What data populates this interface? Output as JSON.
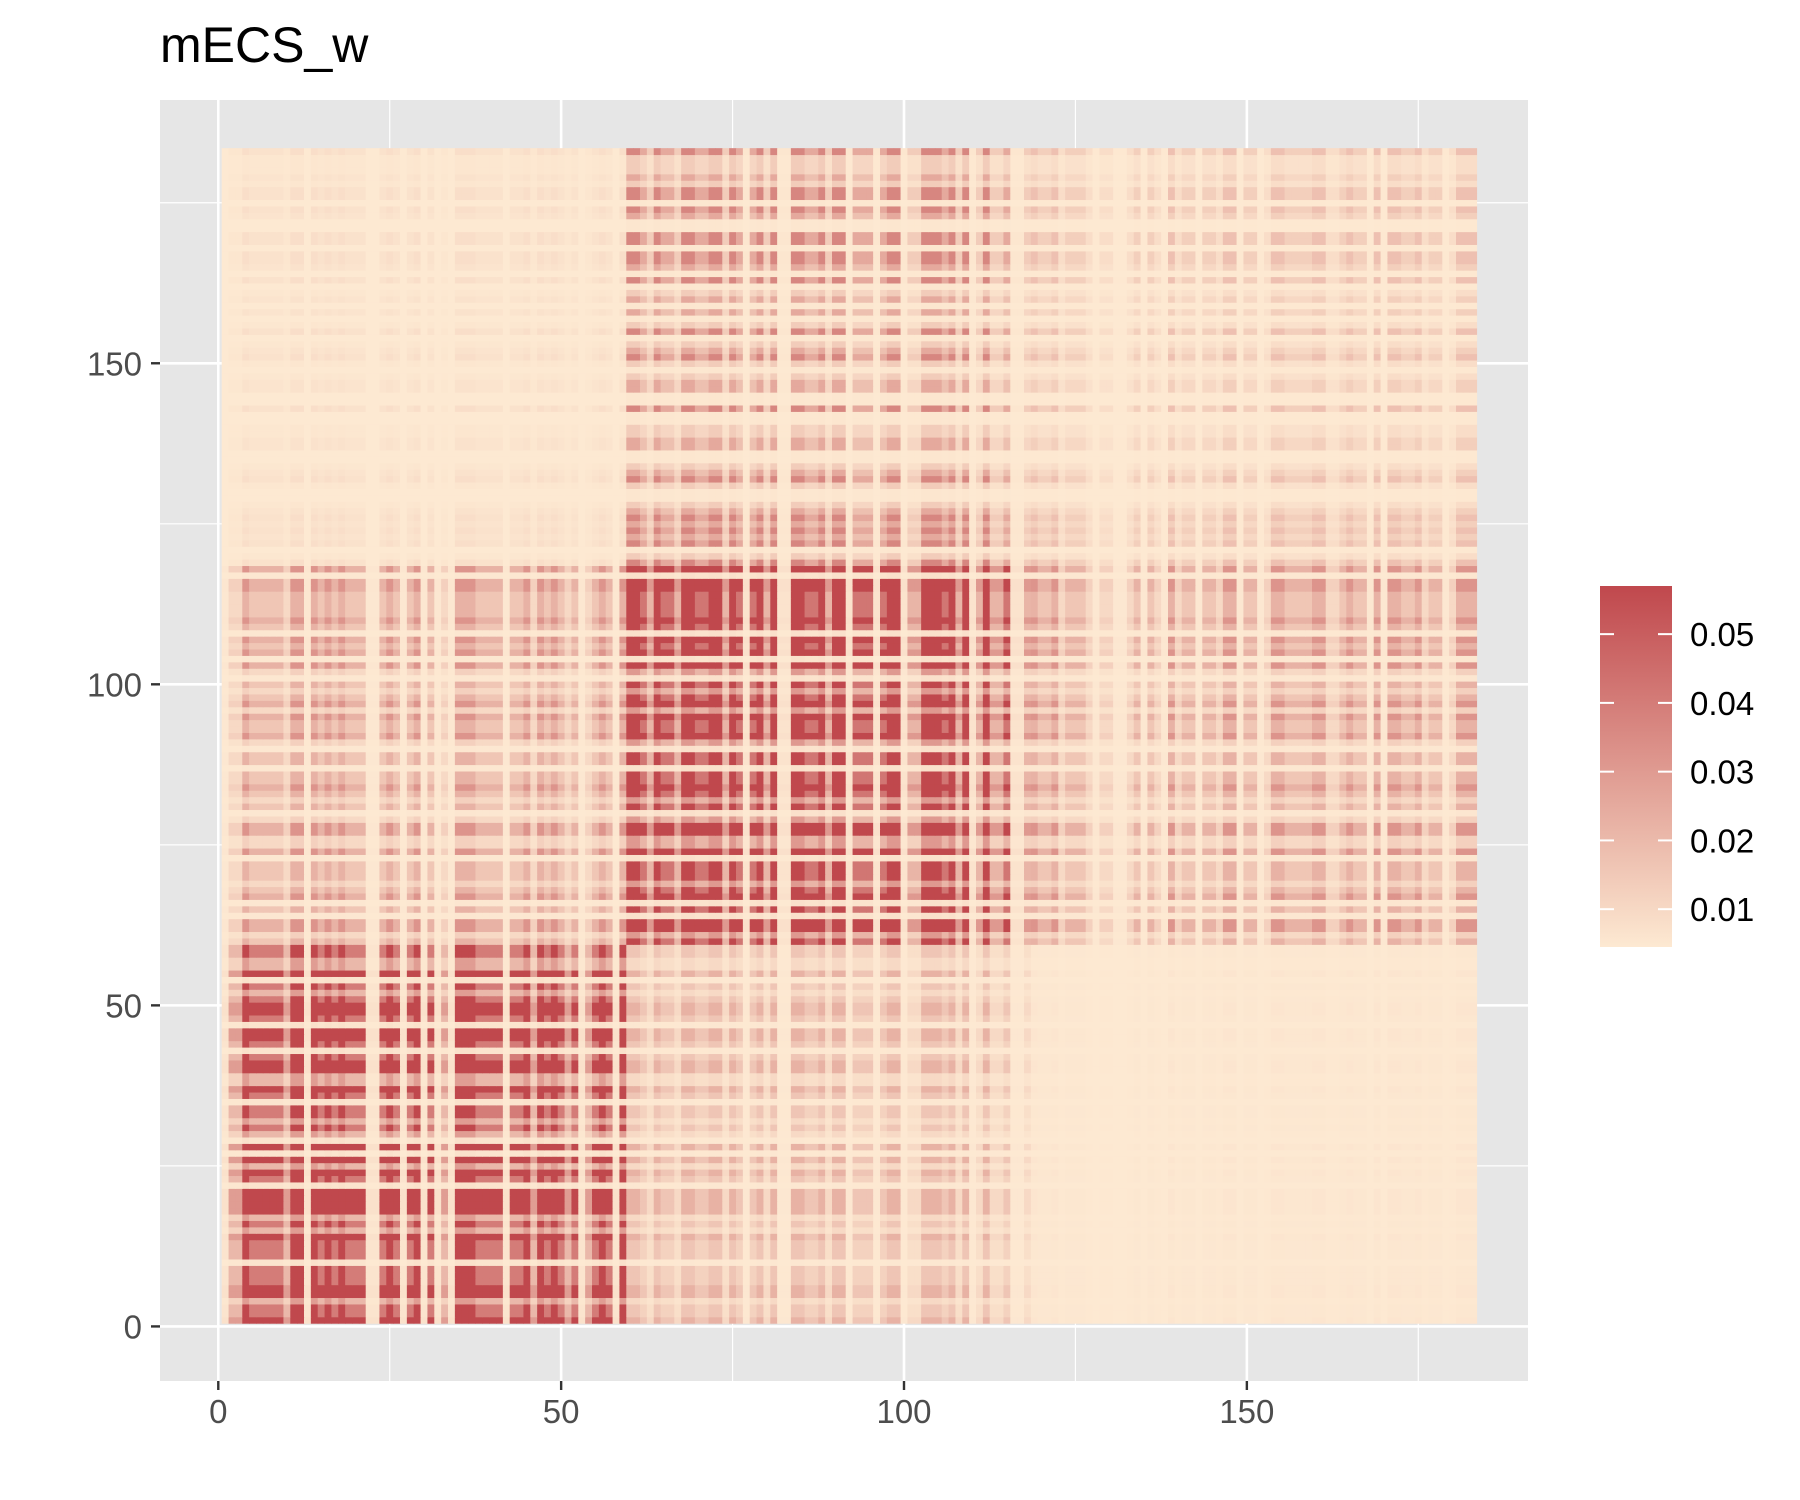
{
  "chart_data": {
    "type": "heatmap",
    "title": "mECS_w",
    "xlabel": "",
    "ylabel": "",
    "n_rows": 183,
    "n_cols": 183,
    "xlim": [
      -8.5,
      191
    ],
    "ylim": [
      -8.5,
      191
    ],
    "x_ticks": [
      0,
      50,
      100,
      150
    ],
    "y_ticks": [
      0,
      50,
      100,
      150
    ],
    "x_tick_labels": [
      "0",
      "50",
      "100",
      "150"
    ],
    "y_tick_labels": [
      "0",
      "50",
      "100",
      "150"
    ],
    "grid": true,
    "legend": {
      "position": "right",
      "min": 0.0045,
      "max": 0.057,
      "ticks": [
        0.01,
        0.02,
        0.03,
        0.04,
        0.05
      ],
      "tick_labels": [
        "0.01",
        "0.02",
        "0.03",
        "0.04",
        "0.05"
      ],
      "low_color": "#fde9d2",
      "high_color": "#c0484d"
    },
    "colors": {
      "panel_background": "#e6e6e6",
      "gridline": "#ffffff",
      "low": "#fde9d2",
      "high": "#c0484d"
    },
    "blocks": [
      {
        "rows": [
          0,
          58
        ],
        "cols": [
          0,
          58
        ],
        "value": 0.04
      },
      {
        "rows": [
          59,
          117
        ],
        "cols": [
          59,
          117
        ],
        "value": 0.042
      },
      {
        "rows": [
          59,
          117
        ],
        "cols": [
          0,
          58
        ],
        "value": 0.016
      },
      {
        "rows": [
          0,
          58
        ],
        "cols": [
          59,
          117
        ],
        "value": 0.012
      },
      {
        "rows": [
          118,
          182
        ],
        "cols": [
          59,
          117
        ],
        "value": 0.018
      },
      {
        "rows": [
          59,
          117
        ],
        "cols": [
          118,
          182
        ],
        "value": 0.016
      },
      {
        "rows": [
          118,
          182
        ],
        "cols": [
          118,
          182
        ],
        "value": 0.01
      },
      {
        "rows": [
          118,
          182
        ],
        "cols": [
          0,
          58
        ],
        "value": 0.006
      },
      {
        "rows": [
          0,
          58
        ],
        "cols": [
          118,
          182
        ],
        "value": 0.005
      }
    ]
  }
}
